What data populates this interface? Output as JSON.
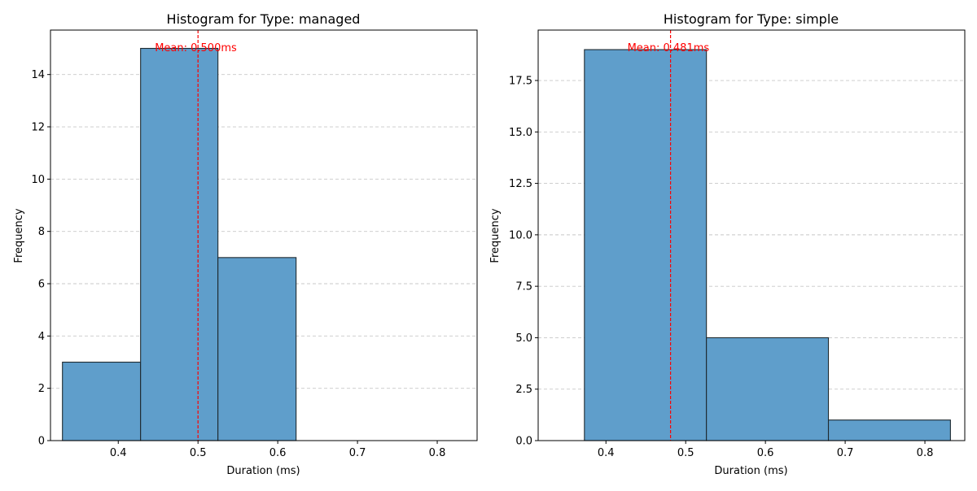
{
  "colors": {
    "bar_fill": "#5f9ecb",
    "bar_edge": "#1f2a30",
    "mean_line": "#ff0000",
    "grid": "#c8c8c8",
    "axis": "#000000"
  },
  "chart_data": [
    {
      "type": "bar",
      "title": "Histogram for Type: managed",
      "xlabel": "Duration (ms)",
      "ylabel": "Frequency",
      "xlim": [
        0.315,
        0.85
      ],
      "ylim": [
        0,
        15.7
      ],
      "xticks": [
        0.4,
        0.5,
        0.6,
        0.7,
        0.8
      ],
      "xtick_labels": [
        "0.4",
        "0.5",
        "0.6",
        "0.7",
        "0.8"
      ],
      "yticks": [
        0,
        2,
        4,
        6,
        8,
        10,
        12,
        14
      ],
      "ytick_labels": [
        "0",
        "2",
        "4",
        "6",
        "8",
        "10",
        "12",
        "14"
      ],
      "bin_edges": [
        0.33,
        0.428,
        0.525,
        0.623
      ],
      "values": [
        3,
        15,
        7
      ],
      "mean": 0.5,
      "mean_label": "Mean: 0.500ms",
      "grid": "y-dashed"
    },
    {
      "type": "bar",
      "title": "Histogram for Type: simple",
      "xlabel": "Duration (ms)",
      "ylabel": "Frequency",
      "xlim": [
        0.315,
        0.85
      ],
      "ylim": [
        0,
        19.95
      ],
      "xticks": [
        0.4,
        0.5,
        0.6,
        0.7,
        0.8
      ],
      "xtick_labels": [
        "0.4",
        "0.5",
        "0.6",
        "0.7",
        "0.8"
      ],
      "yticks": [
        0,
        2.5,
        5,
        7.5,
        10,
        12.5,
        15,
        17.5
      ],
      "ytick_labels": [
        "0.0",
        "2.5",
        "5.0",
        "7.5",
        "10.0",
        "12.5",
        "15.0",
        "17.5"
      ],
      "bin_edges": [
        0.373,
        0.526,
        0.679,
        0.832
      ],
      "values": [
        19,
        5,
        1
      ],
      "mean": 0.481,
      "mean_label": "Mean: 0.481ms",
      "grid": "y-dashed"
    }
  ]
}
